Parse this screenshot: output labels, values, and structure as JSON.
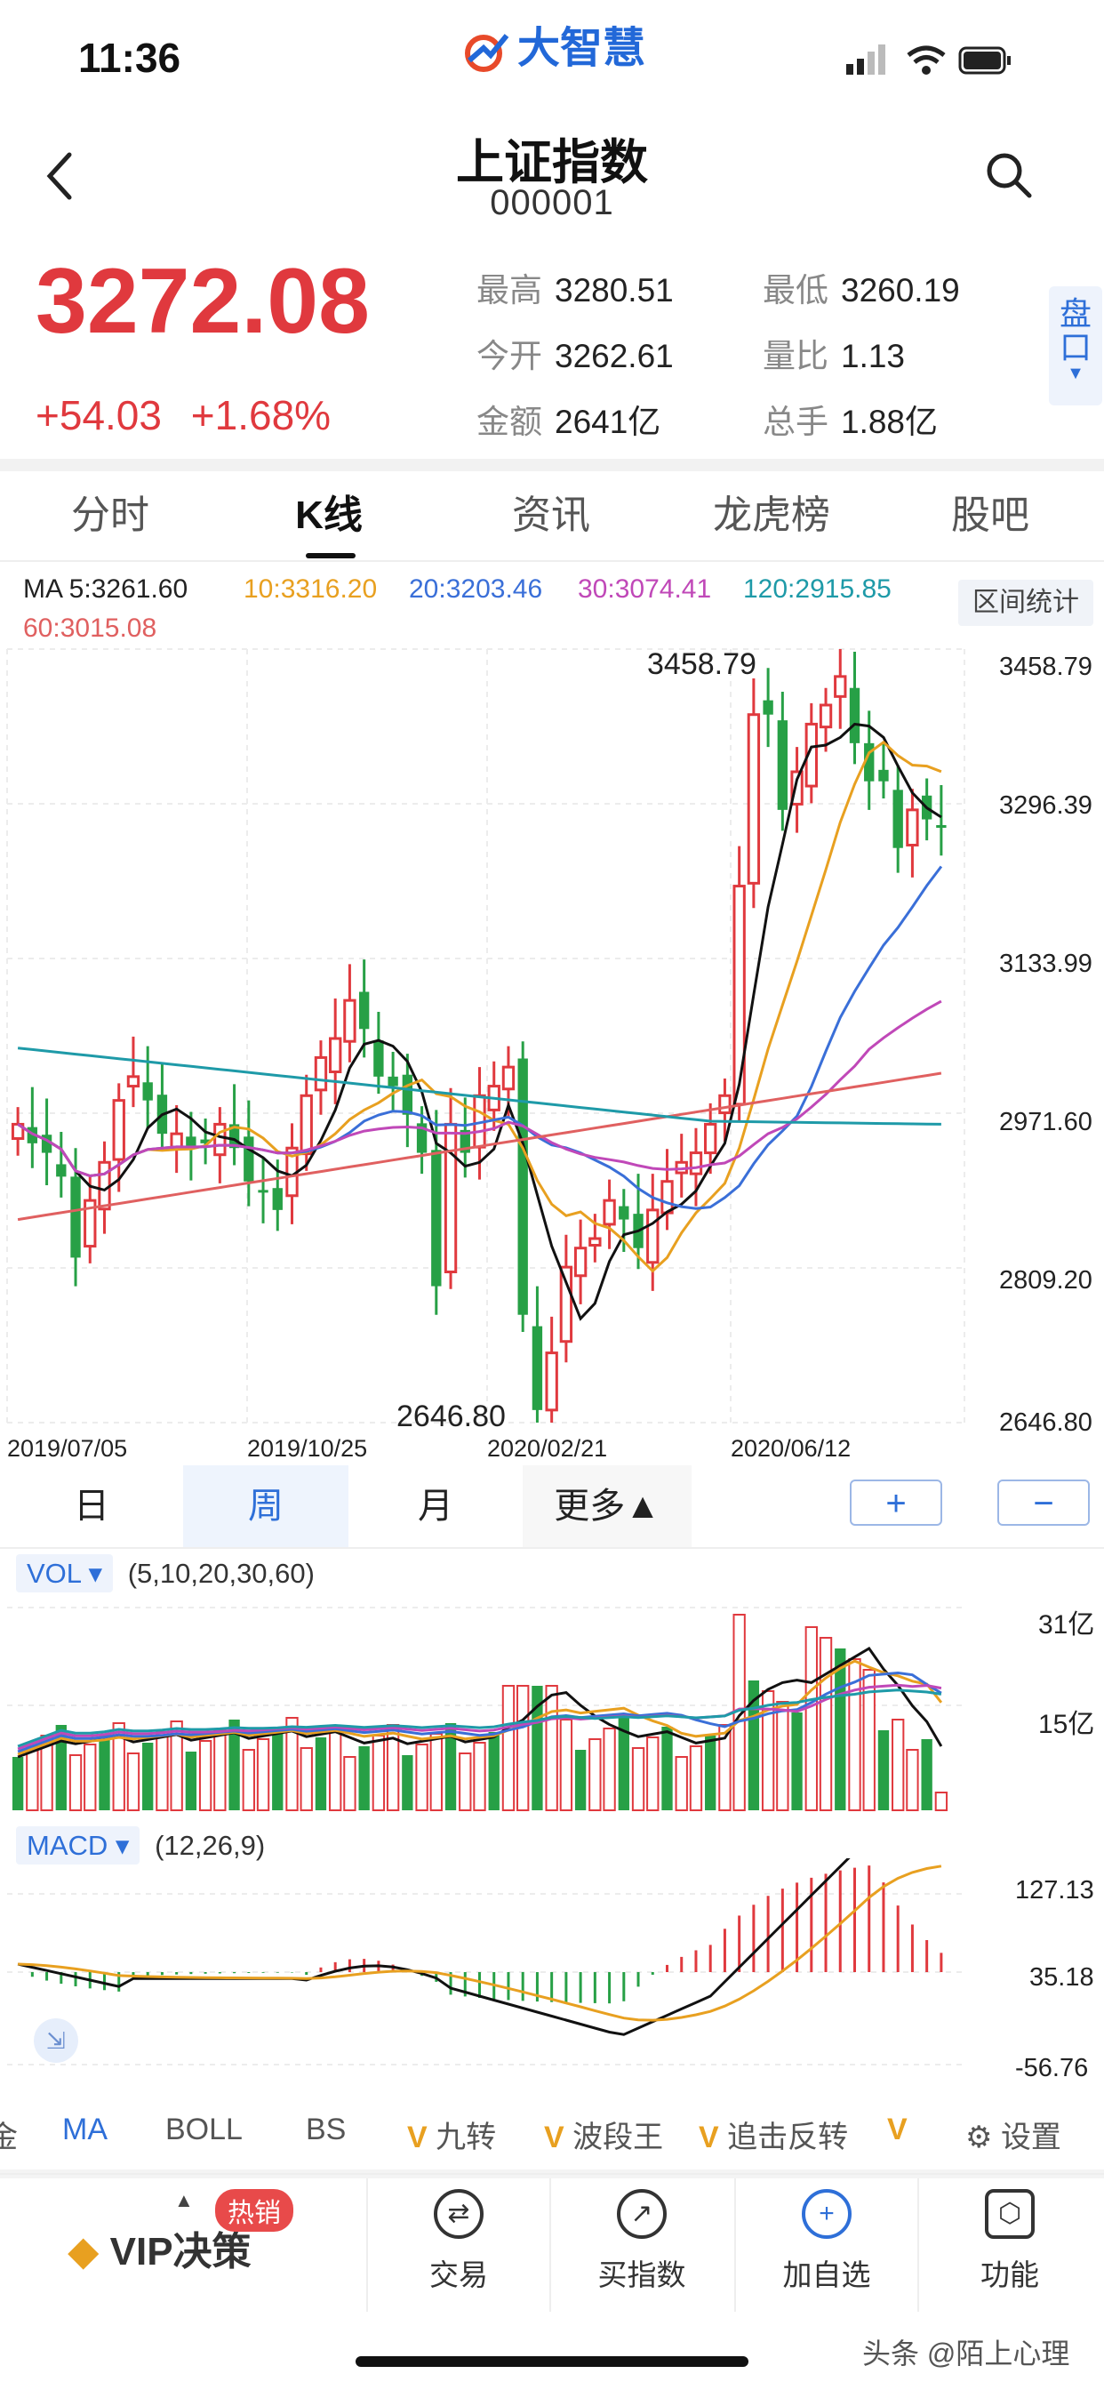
{
  "status": {
    "time": "11:36"
  },
  "brand": {
    "name": "大智慧"
  },
  "header": {
    "title": "上证指数",
    "code": "000001"
  },
  "quote": {
    "price": "3272.08",
    "change": "+54.03",
    "change_pct": "+1.68%",
    "stats": [
      {
        "label": "最高",
        "value": "3280.51"
      },
      {
        "label": "最低",
        "value": "3260.19"
      },
      {
        "label": "今开",
        "value": "3262.61"
      },
      {
        "label": "量比",
        "value": "1.13"
      },
      {
        "label": "金额",
        "value": "2641亿"
      },
      {
        "label": "总手",
        "value": "1.88亿"
      }
    ],
    "pankou": "盘口"
  },
  "tabs": [
    "分时",
    "K线",
    "资讯",
    "龙虎榜",
    "股吧"
  ],
  "active_tab": "K线",
  "ma_legend": {
    "ma5": "MA 5:3261.60",
    "ma10": "10:3316.20",
    "ma20": "20:3203.46",
    "ma30": "30:3074.41",
    "ma120": "120:2915.85",
    "ma60": "60:3015.08"
  },
  "interval_stats_button": "区间统计",
  "kchart": {
    "y_labels": [
      "3458.79",
      "3296.39",
      "3133.99",
      "2971.60",
      "2809.20",
      "2646.80"
    ],
    "x_labels": [
      "2019/07/05",
      "2019/10/25",
      "2020/02/21",
      "2020/06/12"
    ],
    "high_marker": "3458.79",
    "low_marker": "2646.80"
  },
  "periods": [
    "日",
    "周",
    "月",
    "更多▲"
  ],
  "active_period": "周",
  "zoom": {
    "plus": "+",
    "minus": "−"
  },
  "vol": {
    "label": "VOL",
    "params": "(5,10,20,30,60)",
    "y_labels": [
      "31亿",
      "15亿"
    ]
  },
  "macd": {
    "label": "MACD",
    "params": "(12,26,9)",
    "y_labels": [
      "127.13",
      "35.18",
      "-56.76"
    ]
  },
  "toolbar": {
    "items": [
      "金",
      "MA",
      "BOLL",
      "BS",
      "九转",
      "波段王",
      "追击反转"
    ],
    "settings": "设置"
  },
  "bottom_nav": {
    "vip": "VIP决策",
    "hot": "热销",
    "items": [
      "交易",
      "买指数",
      "加自选",
      "功能"
    ]
  },
  "watermark": "头条 @陌上心理",
  "colors": {
    "up": "#e0393e",
    "down": "#27a046",
    "accent": "#2e6fd8",
    "ma5": "#111111",
    "ma10": "#e8a020",
    "ma20": "#3a6fd8",
    "ma30": "#c048b8",
    "ma60": "#e06060",
    "ma120": "#1e9aa8"
  }
}
